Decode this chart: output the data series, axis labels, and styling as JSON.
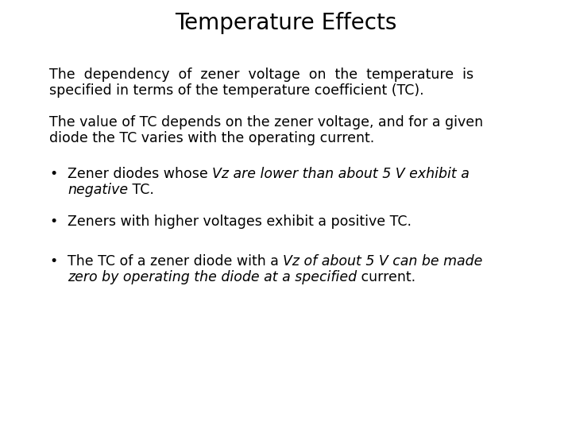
{
  "title": "Temperature Effects",
  "title_fontsize": 20,
  "background_color": "#ffffff",
  "text_color": "#000000",
  "body_fontsize": 12.5,
  "figsize": [
    7.2,
    5.4
  ],
  "dpi": 100,
  "para1_line1": "The  dependency  of  zener  voltage  on  the  temperature  is",
  "para1_line2": "specified in terms of the temperature coefficient (TC).",
  "para2_line1": "The value of TC depends on the zener voltage, and for a given",
  "para2_line2": "diode the TC varies with the operating current.",
  "b1_n1": "Zener diodes whose ",
  "b1_i1": "Vz are lower than about 5 V exhibit a",
  "b1_i2": "negative",
  "b1_n2": " TC.",
  "bullet2": "Zeners with higher voltages exhibit a positive TC.",
  "b3_n1": "The TC of a zener diode with a ",
  "b3_i1": "Vz of about 5 V can be made",
  "b3_i2": "zero by operating the diode at a specified",
  "b3_n2": " current."
}
